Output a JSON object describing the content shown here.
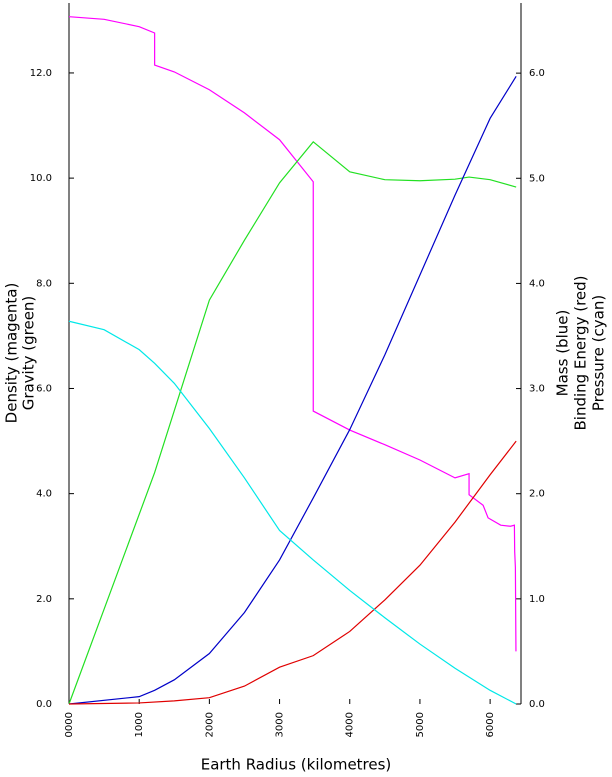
{
  "chart_data": {
    "type": "line",
    "xlabel": "Earth Radius (kilometres)",
    "ylabel": [
      "Density (magenta)",
      "Gravity (green)"
    ],
    "y2label": [
      "Mass (blue)",
      "Binding Energy (red)",
      "Pressure (cyan)"
    ],
    "xlim": [
      0,
      6440
    ],
    "ylim": [
      0,
      13.33
    ],
    "y2lim": [
      0,
      6.667
    ],
    "xticks": [
      {
        "value": 0,
        "label": "0000"
      },
      1000,
      2000,
      3000,
      4000,
      5000,
      6000
    ],
    "yticks": [
      {
        "value": 0,
        "label": "0.0"
      },
      {
        "value": 2,
        "label": "2.0"
      },
      {
        "value": 4,
        "label": "4.0"
      },
      {
        "value": 6,
        "label": "6.0"
      },
      {
        "value": 8,
        "label": "8.0"
      },
      {
        "value": 10,
        "label": "10.0"
      },
      {
        "value": 12,
        "label": "12.0"
      }
    ],
    "y2ticks": [
      {
        "value": 0,
        "label": "0.0"
      },
      {
        "value": 1,
        "label": "1.0"
      },
      {
        "value": 2,
        "label": "2.0"
      },
      {
        "value": 3,
        "label": "3.0"
      },
      {
        "value": 4,
        "label": "4.0"
      },
      {
        "value": 5,
        "label": "5.0"
      },
      {
        "value": 6,
        "label": "6.0"
      }
    ],
    "series": [
      {
        "name": "Density",
        "color": "#ff00ff",
        "axis": "y",
        "x": [
          0,
          500,
          1000,
          1220,
          1220,
          1500,
          2000,
          2500,
          3000,
          3480,
          3480,
          4000,
          4500,
          5000,
          5500,
          5700,
          5700,
          5900,
          5971,
          6151,
          6291,
          6346,
          6350,
          6360,
          6368
        ],
        "values": [
          13.07,
          13.02,
          12.88,
          12.76,
          12.15,
          12.02,
          11.68,
          11.24,
          10.73,
          9.93,
          5.57,
          5.21,
          4.93,
          4.64,
          4.3,
          4.38,
          3.98,
          3.78,
          3.54,
          3.4,
          3.38,
          3.4,
          2.9,
          2.6,
          1.0
        ]
      },
      {
        "name": "Gravity",
        "color": "#22e022",
        "axis": "y",
        "x": [
          0,
          1220,
          2000,
          2500,
          3000,
          3480,
          4000,
          4500,
          5000,
          5500,
          5700,
          6000,
          6371
        ],
        "values": [
          0,
          4.4,
          7.68,
          8.82,
          9.91,
          10.69,
          10.12,
          9.97,
          9.95,
          9.98,
          10.02,
          9.97,
          9.83
        ]
      },
      {
        "name": "Mass",
        "color": "#0000c8",
        "axis": "y2",
        "x": [
          0,
          1000,
          1220,
          1500,
          2000,
          2500,
          3000,
          3480,
          4000,
          4500,
          5000,
          5500,
          6000,
          6371
        ],
        "values": [
          0,
          0.07,
          0.13,
          0.23,
          0.48,
          0.87,
          1.37,
          1.96,
          2.61,
          3.32,
          4.08,
          4.84,
          5.57,
          5.97
        ]
      },
      {
        "name": "Binding Energy",
        "color": "#e00000",
        "axis": "y2",
        "x": [
          0,
          1000,
          1500,
          2000,
          2500,
          3000,
          3480,
          4000,
          4500,
          5000,
          5500,
          6000,
          6371
        ],
        "values": [
          0,
          0.01,
          0.03,
          0.06,
          0.17,
          0.35,
          0.46,
          0.69,
          0.99,
          1.32,
          1.73,
          2.18,
          2.5
        ]
      },
      {
        "name": "Pressure",
        "color": "#00e8e8",
        "axis": "y2",
        "x": [
          0,
          500,
          1000,
          1220,
          1500,
          2000,
          2500,
          3000,
          3480,
          4000,
          4500,
          5000,
          5500,
          6000,
          6371
        ],
        "values": [
          3.64,
          3.56,
          3.37,
          3.24,
          3.05,
          2.62,
          2.15,
          1.65,
          1.37,
          1.08,
          0.82,
          0.57,
          0.34,
          0.13,
          0
        ]
      }
    ]
  }
}
